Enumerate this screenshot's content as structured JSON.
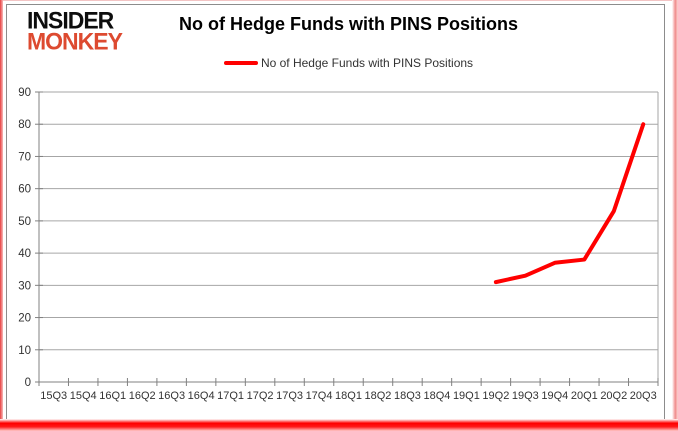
{
  "logo": {
    "line1": "INSIDER",
    "line2": "MONKEY"
  },
  "header": {
    "title": "No of Hedge Funds with PINS Positions"
  },
  "legend": {
    "label": "No of Hedge Funds with PINS Positions",
    "line_color": "#ff0000"
  },
  "chart_data": {
    "type": "line",
    "title": "No of Hedge Funds with PINS Positions",
    "categories": [
      "15Q3",
      "15Q4",
      "16Q1",
      "16Q2",
      "16Q3",
      "16Q4",
      "17Q1",
      "17Q2",
      "17Q3",
      "17Q4",
      "18Q1",
      "18Q2",
      "18Q3",
      "18Q4",
      "19Q1",
      "19Q2",
      "19Q3",
      "19Q4",
      "20Q1",
      "20Q2",
      "20Q3"
    ],
    "series": [
      {
        "name": "No of Hedge Funds with PINS Positions",
        "color": "#ff0000",
        "values": [
          null,
          null,
          null,
          null,
          null,
          null,
          null,
          null,
          null,
          null,
          null,
          null,
          null,
          null,
          null,
          31,
          33,
          37,
          38,
          53,
          80
        ]
      }
    ],
    "xlabel": "",
    "ylabel": "",
    "ylim": [
      0,
      90
    ],
    "ytick_step": 10,
    "grid": "horizontal",
    "legend_position": "top",
    "colors": {
      "gridline": "#a6a6a6",
      "axis": "#808080",
      "tick_label": "#333333",
      "plot_border_right": "#a6a6a6"
    }
  }
}
